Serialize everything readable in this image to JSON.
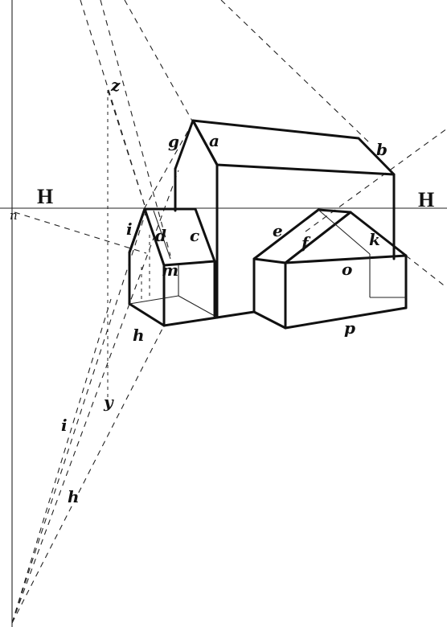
{
  "horizon": {
    "left_label": "H",
    "right_label": "H"
  },
  "labels": {
    "a": "a",
    "b": "b",
    "c": "c",
    "d": "d",
    "e": "e",
    "f": "f",
    "g": "g",
    "h_upper": "h",
    "h_lower": "h",
    "i_upper": "i",
    "i_lower": "i",
    "k": "k",
    "m": "m",
    "n": "n",
    "o": "o",
    "p": "p",
    "y": "y",
    "z": "z"
  }
}
